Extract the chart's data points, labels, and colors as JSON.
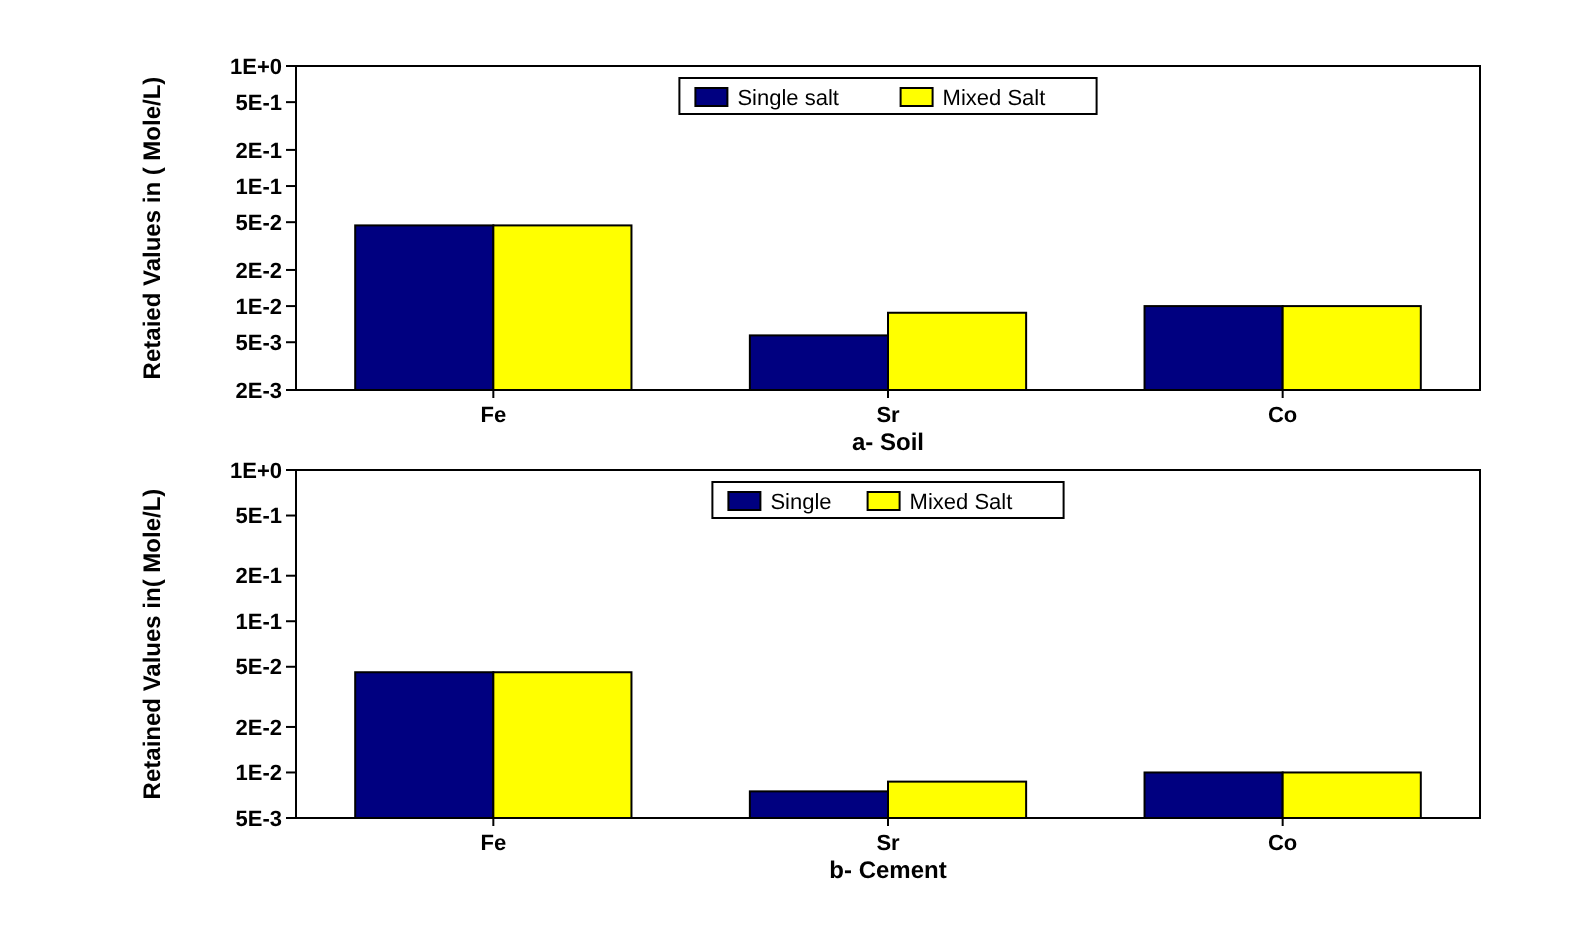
{
  "chart_data": [
    {
      "type": "bar",
      "xlabel": "a- Soil",
      "ylabel": "Retaied Values in ( Mole/L)",
      "categories": [
        "Fe",
        "Sr",
        "Co"
      ],
      "log": true,
      "legend": "top",
      "grid": false,
      "ylim": [
        0.002,
        1
      ],
      "yticks": [
        {
          "value": 0.002,
          "label": "2E-3"
        },
        {
          "value": 0.005,
          "label": "5E-3"
        },
        {
          "value": 0.01,
          "label": "1E-2"
        },
        {
          "value": 0.02,
          "label": "2E-2"
        },
        {
          "value": 0.05,
          "label": "5E-2"
        },
        {
          "value": 0.1,
          "label": "1E-1"
        },
        {
          "value": 0.2,
          "label": "2E-1"
        },
        {
          "value": 0.5,
          "label": "5E-1"
        },
        {
          "value": 1,
          "label": "1E+0"
        }
      ],
      "series": [
        {
          "name": "Single salt",
          "color": "#000080",
          "values": [
            0.047,
            0.0057,
            0.01
          ]
        },
        {
          "name": "Mixed Salt",
          "color": "#ffff00",
          "values": [
            0.047,
            0.0088,
            0.01
          ]
        }
      ]
    },
    {
      "type": "bar",
      "xlabel": "b- Cement",
      "ylabel": "Retained Values in( Mole/L)",
      "categories": [
        "Fe",
        "Sr",
        "Co"
      ],
      "log": true,
      "legend": "top",
      "grid": false,
      "ylim": [
        0.005,
        1
      ],
      "yticks": [
        {
          "value": 0.005,
          "label": "5E-3"
        },
        {
          "value": 0.01,
          "label": "1E-2"
        },
        {
          "value": 0.02,
          "label": "2E-2"
        },
        {
          "value": 0.05,
          "label": "5E-2"
        },
        {
          "value": 0.1,
          "label": "1E-1"
        },
        {
          "value": 0.2,
          "label": "2E-1"
        },
        {
          "value": 0.5,
          "label": "5E-1"
        },
        {
          "value": 1,
          "label": "1E+0"
        }
      ],
      "series": [
        {
          "name": "Single",
          "color": "#000080",
          "values": [
            0.046,
            0.0075,
            0.01
          ]
        },
        {
          "name": "Mixed Salt",
          "color": "#ffff00",
          "values": [
            0.046,
            0.0087,
            0.01
          ]
        }
      ]
    }
  ]
}
